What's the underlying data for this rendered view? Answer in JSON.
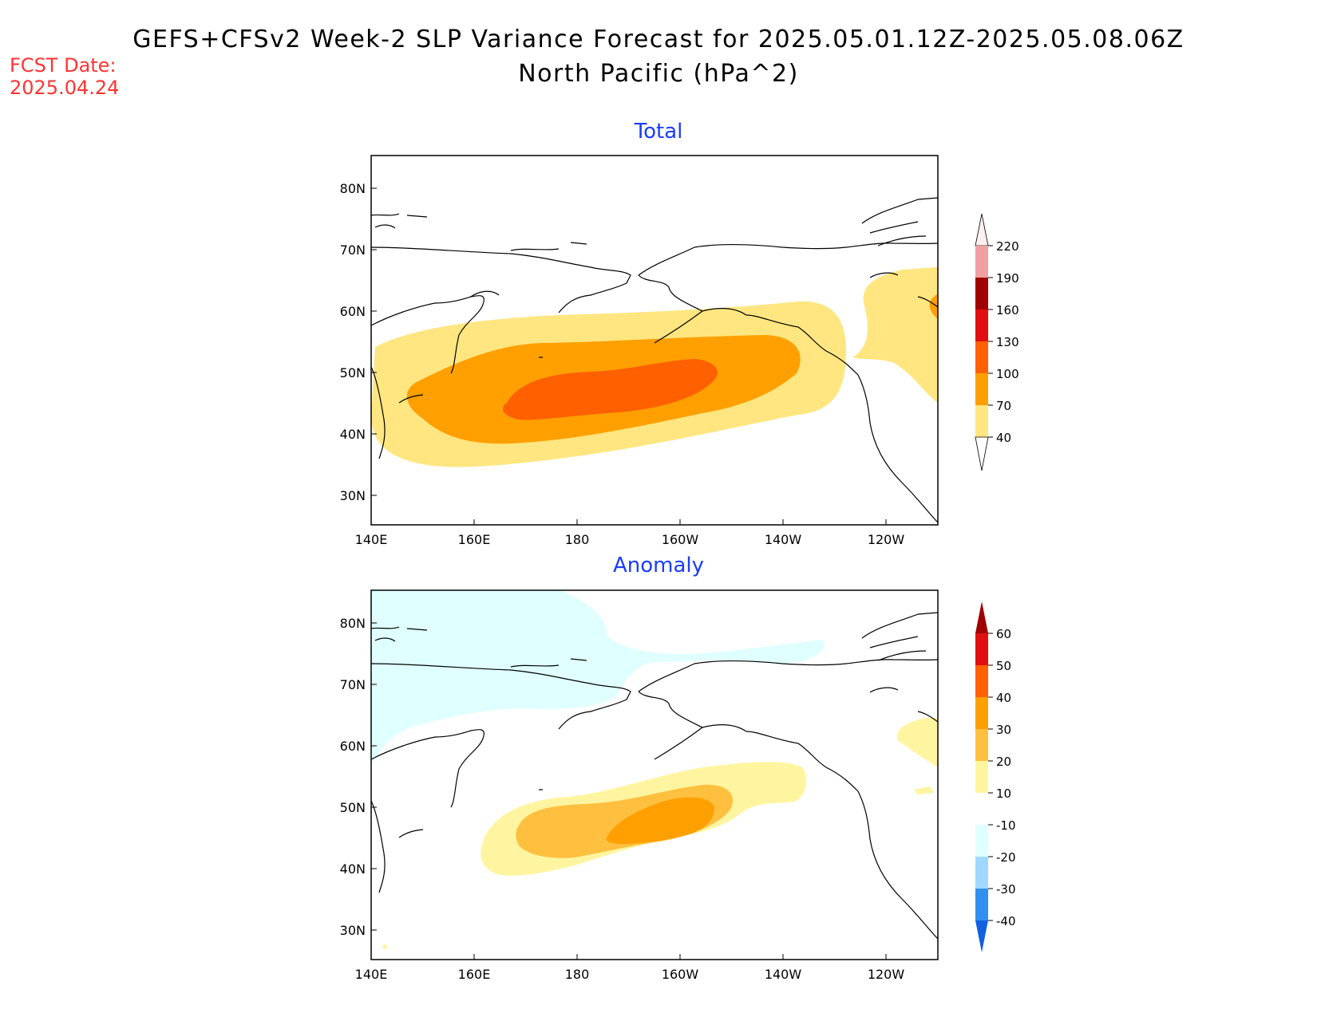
{
  "title": {
    "line1": "GEFS+CFSv2 Week-2 SLP Variance Forecast for 2025.05.01.12Z-2025.05.08.06Z",
    "line2": "North Pacific (hPa^2)"
  },
  "fcst": {
    "label": "FCST Date:",
    "date": "2025.04.24"
  },
  "axes": {
    "lat_labels": [
      "80N",
      "70N",
      "60N",
      "50N",
      "40N",
      "30N"
    ],
    "lon_labels": [
      "140E",
      "160E",
      "180",
      "160W",
      "140W",
      "120W"
    ],
    "lat_range": [
      25,
      85
    ],
    "lon_range_east": [
      140,
      250
    ]
  },
  "panels": [
    {
      "title": "Total",
      "colorbar": {
        "labels": [
          "220",
          "190",
          "160",
          "130",
          "100",
          "70",
          "40"
        ],
        "colors": [
          "#f8d0d0",
          "#f0a0a0",
          "#a00000",
          "#e01010",
          "#ff6000",
          "#ffa000",
          "#ffe680"
        ]
      }
    },
    {
      "title": "Anomaly",
      "colorbar": {
        "labels": [
          "60",
          "50",
          "40",
          "30",
          "20",
          "10",
          "-10",
          "-20",
          "-30",
          "-40"
        ],
        "colors": [
          "#a00000",
          "#e01010",
          "#ff6000",
          "#ffa000",
          "#ffc040",
          "#fff5a0",
          "#ffffff",
          "#e0ffff",
          "#a0d8ff",
          "#3090f0",
          "#1060e0"
        ]
      }
    }
  ]
}
